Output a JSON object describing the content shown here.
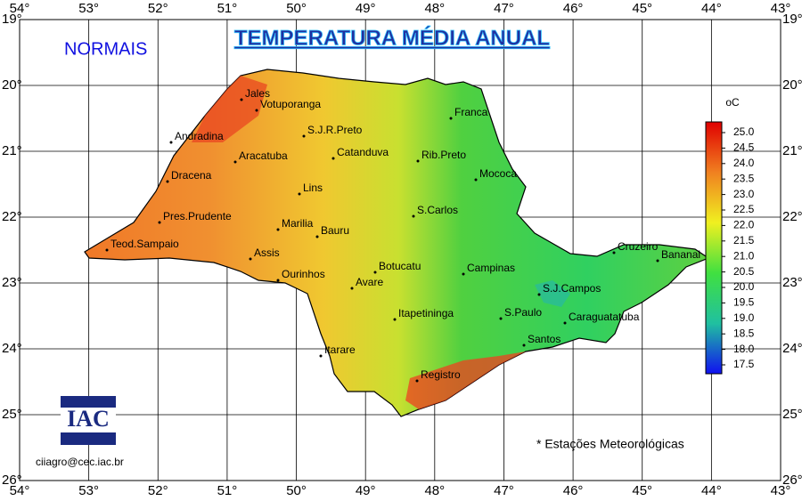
{
  "header": {
    "title": "TEMPERATURA MÉDIA ANUAL",
    "subtitle": "NORMAIS"
  },
  "map": {
    "longitude_labels": [
      {
        "value": 54,
        "label": "54°"
      },
      {
        "value": 53,
        "label": "53°"
      },
      {
        "value": 52,
        "label": "52°"
      },
      {
        "value": 51,
        "label": "51°"
      },
      {
        "value": 50,
        "label": "50°"
      },
      {
        "value": 49,
        "label": "49°"
      },
      {
        "value": 48,
        "label": "48°"
      },
      {
        "value": 47,
        "label": "47°"
      },
      {
        "value": 46,
        "label": "46°"
      },
      {
        "value": 45,
        "label": "45°"
      },
      {
        "value": 44,
        "label": "44°"
      },
      {
        "value": 43,
        "label": "43°"
      }
    ],
    "latitude_labels": [
      {
        "value": 19,
        "label": "19°"
      },
      {
        "value": 20,
        "label": "20°"
      },
      {
        "value": 21,
        "label": "21°"
      },
      {
        "value": 22,
        "label": "22°"
      },
      {
        "value": 23,
        "label": "23°"
      },
      {
        "value": 24,
        "label": "24°"
      },
      {
        "value": 25,
        "label": "25°"
      },
      {
        "value": 26,
        "label": "26°"
      }
    ],
    "cities": [
      "Jales",
      "Votuporanga",
      "Franca",
      "S.J.R.Preto",
      "Andradina",
      "Catanduva",
      "Rib.Preto",
      "Aracatuba",
      "Dracena",
      "Mococa",
      "Lins",
      "S.Carlos",
      "Pres.Prudente",
      "Marilia",
      "Bauru",
      "Teod.Sampaio",
      "Cruzeiro",
      "Bananal",
      "Assis",
      "Botucatu",
      "Campinas",
      "Ourinhos",
      "Avare",
      "S.J.Campos",
      "Itapetininga",
      "S.Paulo",
      "Caraguatatuba",
      "Santos",
      "Itarare",
      "Registro"
    ],
    "note": "* Estações Meteorológicas"
  },
  "legend": {
    "unit": "oC",
    "ticks": [
      {
        "value": 25,
        "label": "25.0"
      },
      {
        "value": 24.5,
        "label": "24.5"
      },
      {
        "value": 24,
        "label": "24.0"
      },
      {
        "value": 23.5,
        "label": "23.5"
      },
      {
        "value": 23,
        "label": "23.0"
      },
      {
        "value": 22.5,
        "label": "22.5"
      },
      {
        "value": 22,
        "label": "22.0"
      },
      {
        "value": 21.5,
        "label": "21.5"
      },
      {
        "value": 21,
        "label": "21.0"
      },
      {
        "value": 20.5,
        "label": "20.5"
      },
      {
        "value": 20,
        "label": "20.0"
      },
      {
        "value": 19.5,
        "label": "19.5"
      },
      {
        "value": 19,
        "label": "19.0"
      },
      {
        "value": 18.5,
        "label": "18.5"
      },
      {
        "value": 18,
        "label": "18.0"
      },
      {
        "value": 17.5,
        "label": "17.5"
      }
    ]
  },
  "logo": {
    "text": "IAC"
  },
  "footer": {
    "email": "ciiagro@cec.iac.br"
  }
}
